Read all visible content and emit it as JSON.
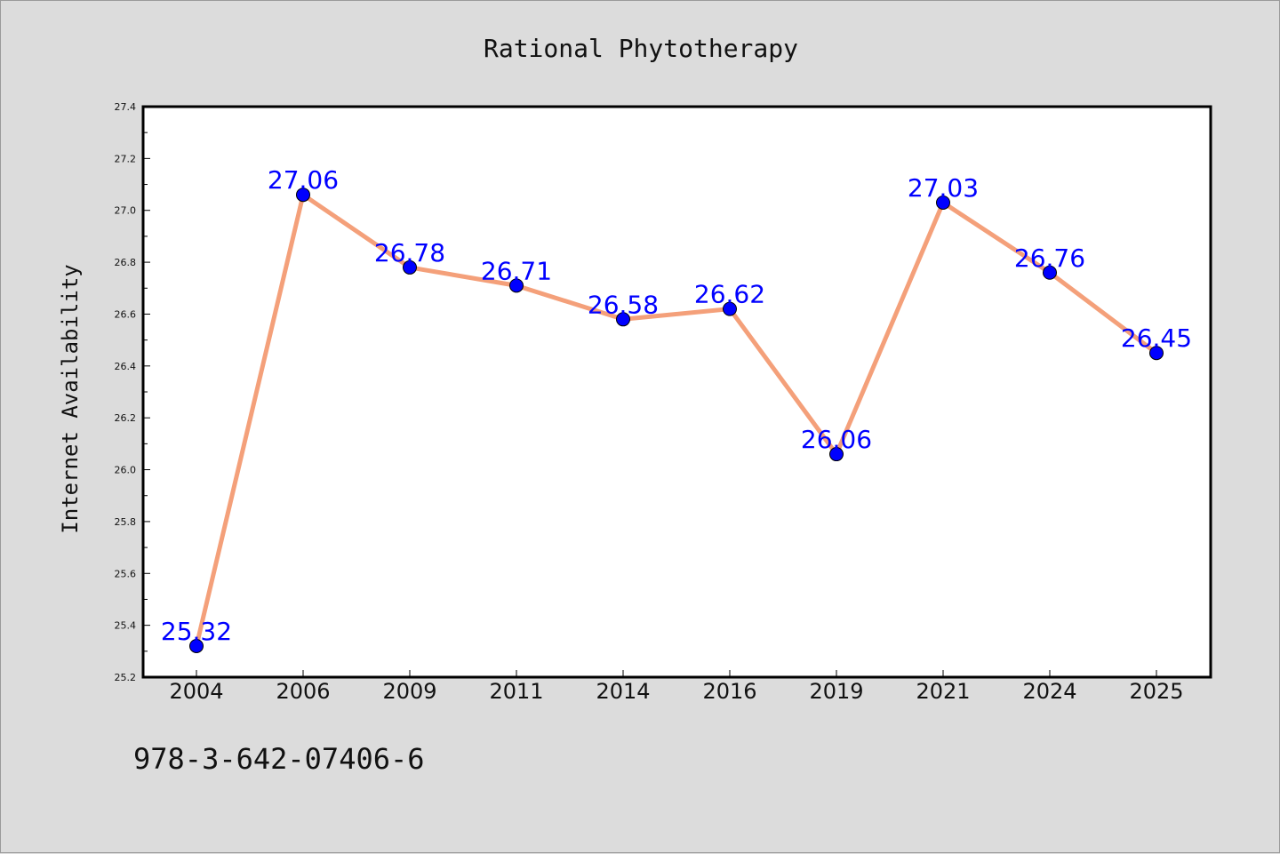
{
  "chart_data": {
    "type": "line",
    "title": "Rational Phytotherapy",
    "xlabel": "",
    "ylabel": "Internet Availability",
    "categories": [
      "2004",
      "2006",
      "2009",
      "2011",
      "2014",
      "2016",
      "2019",
      "2021",
      "2024",
      "2025"
    ],
    "values": [
      25.32,
      27.06,
      26.78,
      26.71,
      26.58,
      26.62,
      26.06,
      27.03,
      26.76,
      26.45
    ],
    "data_labels": [
      "25.32",
      "27.06",
      "26.78",
      "26.71",
      "26.58",
      "26.62",
      "26.06",
      "27.03",
      "26.76",
      "26.45"
    ],
    "ylim": [
      25.2,
      27.4
    ],
    "yticks": [
      "25.2",
      "25.4",
      "25.6",
      "25.8",
      "26.0",
      "26.2",
      "26.4",
      "26.6",
      "26.8",
      "27.0",
      "27.2",
      "27.4"
    ],
    "grid": false,
    "line_color": "#f4a07a",
    "marker_color": "#0000ff",
    "label_color": "#0000ff"
  },
  "footnote": "978-3-642-07406-6"
}
